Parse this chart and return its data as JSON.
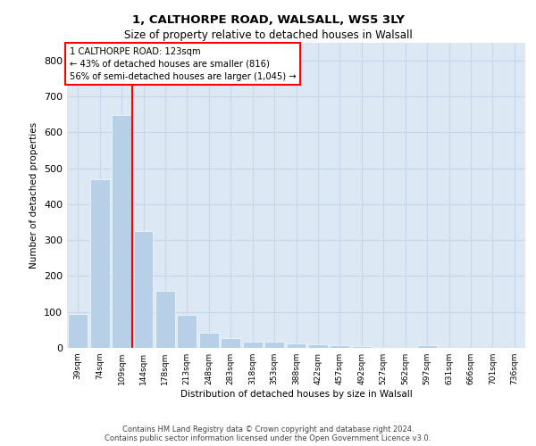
{
  "title_line1": "1, CALTHORPE ROAD, WALSALL, WS5 3LY",
  "title_line2": "Size of property relative to detached houses in Walsall",
  "xlabel": "Distribution of detached houses by size in Walsall",
  "ylabel": "Number of detached properties",
  "categories": [
    "39sqm",
    "74sqm",
    "109sqm",
    "144sqm",
    "178sqm",
    "213sqm",
    "248sqm",
    "283sqm",
    "318sqm",
    "353sqm",
    "388sqm",
    "422sqm",
    "457sqm",
    "492sqm",
    "527sqm",
    "562sqm",
    "597sqm",
    "631sqm",
    "666sqm",
    "701sqm",
    "736sqm"
  ],
  "values": [
    95,
    470,
    648,
    325,
    158,
    93,
    43,
    27,
    18,
    17,
    13,
    10,
    7,
    6,
    0,
    0,
    8,
    0,
    0,
    0,
    0
  ],
  "bar_color": "#b8cfe8",
  "bar_edge_color": "white",
  "grid_color": "#c8d8ec",
  "background_color": "#dce8f4",
  "vline_color": "red",
  "vline_x": 2.5,
  "annotation_line1": "1 CALTHORPE ROAD: 123sqm",
  "annotation_line2": "← 43% of detached houses are smaller (816)",
  "annotation_line3": "56% of semi-detached houses are larger (1,045) →",
  "ylim": [
    0,
    850
  ],
  "yticks": [
    0,
    100,
    200,
    300,
    400,
    500,
    600,
    700,
    800
  ],
  "footer_line1": "Contains HM Land Registry data © Crown copyright and database right 2024.",
  "footer_line2": "Contains public sector information licensed under the Open Government Licence v3.0."
}
